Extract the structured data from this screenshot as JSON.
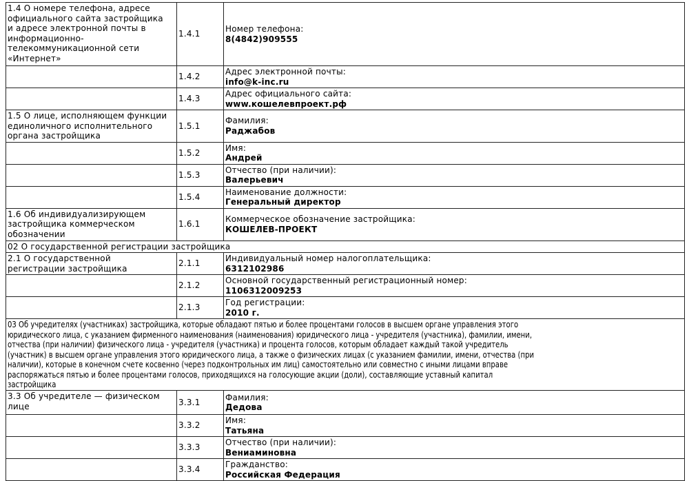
{
  "rows": [
    {
      "type": "item",
      "section_lines": [
        "1.4 О номере телефона, адресе",
        "официального сайта застройщика",
        "и адресе электронной почты в",
        "информационно-",
        "телекоммуникационной сети",
        "«Интернет»"
      ],
      "code": "1.4.1",
      "label": "Номер телефона:",
      "value": "8(4842)909555"
    },
    {
      "type": "item",
      "section_lines": [],
      "code": "1.4.2",
      "label": "Адрес электронной почты:",
      "value": "info@k-inc.ru"
    },
    {
      "type": "item",
      "section_lines": [],
      "code": "1.4.3",
      "label": "Адрес официального сайта:",
      "value": "www.кошелевпроект.рф"
    },
    {
      "type": "item",
      "section_lines": [
        "1.5 О лице, исполняющем функции",
        "единоличного исполнительного",
        "органа застройщика"
      ],
      "code": "1.5.1",
      "label": "Фамилия:",
      "value": "Раджабов"
    },
    {
      "type": "item",
      "section_lines": [],
      "code": "1.5.2",
      "label": "Имя:",
      "value": "Андрей"
    },
    {
      "type": "item",
      "section_lines": [],
      "code": "1.5.3",
      "label": "Отчество (при наличии):",
      "value": "Валерьевич"
    },
    {
      "type": "item",
      "section_lines": [],
      "code": "1.5.4",
      "label": "Наименование должности:",
      "value": "Генеральный директор"
    },
    {
      "type": "item",
      "section_lines": [
        "1.6 Об индивидуализирующем",
        "застройщика коммерческом",
        "обозначении"
      ],
      "code": "1.6.1",
      "label": "Коммерческое обозначение застройщика:",
      "value": "КОШЕЛЕВ-ПРОЕКТ"
    },
    {
      "type": "header",
      "lines": [
        "02 О государственной регистрации застройщика"
      ]
    },
    {
      "type": "item",
      "section_lines": [
        "2.1 О государственной",
        "регистрации застройщика"
      ],
      "code": "2.1.1",
      "label": "Индивидуальный номер налогоплательщика:",
      "value": "6312102986"
    },
    {
      "type": "item",
      "section_lines": [],
      "code": "2.1.2",
      "label": "Основной государственный регистрационный номер:",
      "value": "1106312009253"
    },
    {
      "type": "item",
      "section_lines": [],
      "code": "2.1.3",
      "label": "Год регистрации:",
      "value": "2010 г."
    },
    {
      "type": "header",
      "condensed": true,
      "lines": [
        "03 Об учредителях (участниках) застройщика, которые обладают пятью и более процентами голосов в высшем органе управления этого",
        "юридического лица, с указанием фирменного наименования (наименования) юридического лица - учредителя (участника), фамилии, имени,",
        "отчества (при наличии) физического лица - учредителя (участника) и процента голосов, которым обладает каждый такой учредитель",
        "(участник) в высшем органе управления этого юридического лица, а также о физических лицах (с указанием фамилии, имени, отчества (при",
        "наличии), которые в конечном счете косвенно (через подконтрольных им лиц) самостоятельно или совместно с иными лицами вправе",
        "распоряжаться пятью и более процентами голосов, приходящихся на голосующие акции (доли), составляющие уставный капитал",
        "застройщика"
      ]
    },
    {
      "type": "item",
      "section_lines": [
        "3.3 Об учредителе — физическом",
        "лице"
      ],
      "code": "3.3.1",
      "label": "Фамилия:",
      "value": "Дедова"
    },
    {
      "type": "item",
      "section_lines": [],
      "code": "3.3.2",
      "label": "Имя:",
      "value": "Татьяна"
    },
    {
      "type": "item",
      "section_lines": [],
      "code": "3.3.3",
      "label": "Отчество (при наличии):",
      "value": "Вениаминовна"
    },
    {
      "type": "item",
      "section_lines": [],
      "code": "3.3.4",
      "label": "Гражданство:",
      "value": "Российская Федерация"
    }
  ]
}
